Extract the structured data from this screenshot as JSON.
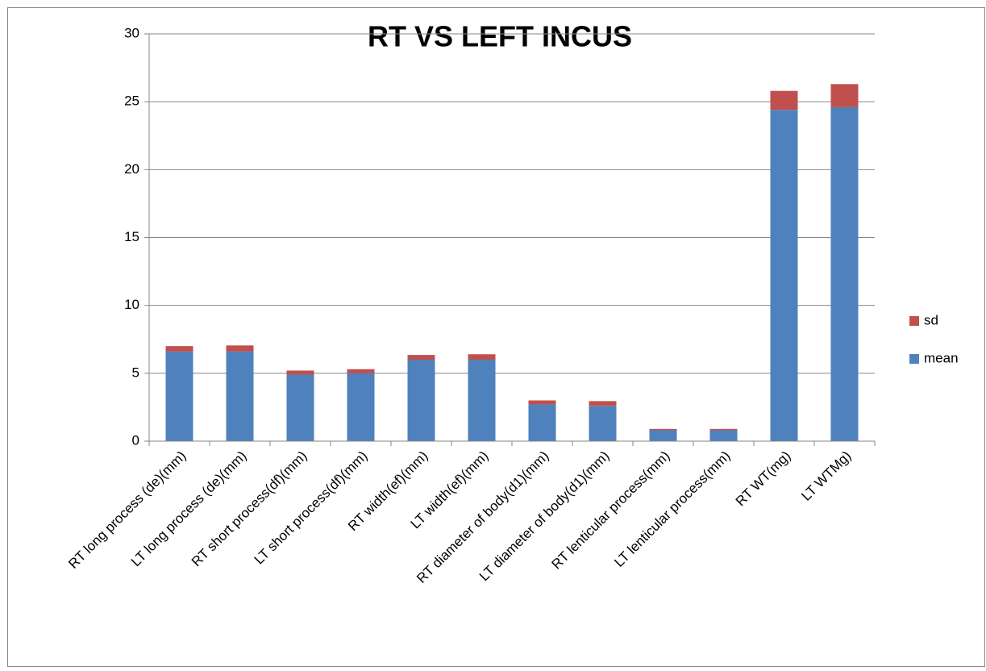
{
  "chart_data": {
    "type": "stacked_bar",
    "title": "RT VS LEFT INCUS",
    "categories": [
      "RT long process (de)(mm)",
      "LT long process (de)(mm)",
      "RT short process(df)(mm)",
      "LT short process(df)(mm)",
      "RT width(ef)(mm)",
      "LT width(ef)(mm)",
      "RT diameter of body(d1)(mm)",
      "LT diameter of body(d1)(mm)",
      "RT lenticular process(mm)",
      "LT lenticular process(mm)",
      "RT WT(mg)",
      "LT WTMg)"
    ],
    "series": [
      {
        "name": "mean",
        "color": "#4f81bd",
        "values": [
          6.6,
          6.6,
          4.9,
          5.0,
          6.0,
          6.0,
          2.7,
          2.6,
          0.8,
          0.8,
          24.4,
          24.6
        ]
      },
      {
        "name": "sd",
        "color": "#c0504d",
        "values": [
          0.4,
          0.45,
          0.3,
          0.3,
          0.35,
          0.4,
          0.3,
          0.35,
          0.1,
          0.1,
          1.4,
          1.7
        ]
      }
    ],
    "ylim": [
      0,
      30
    ],
    "yticks": [
      0,
      5,
      10,
      15,
      20,
      25,
      30
    ],
    "grid": true,
    "legend": "right"
  }
}
